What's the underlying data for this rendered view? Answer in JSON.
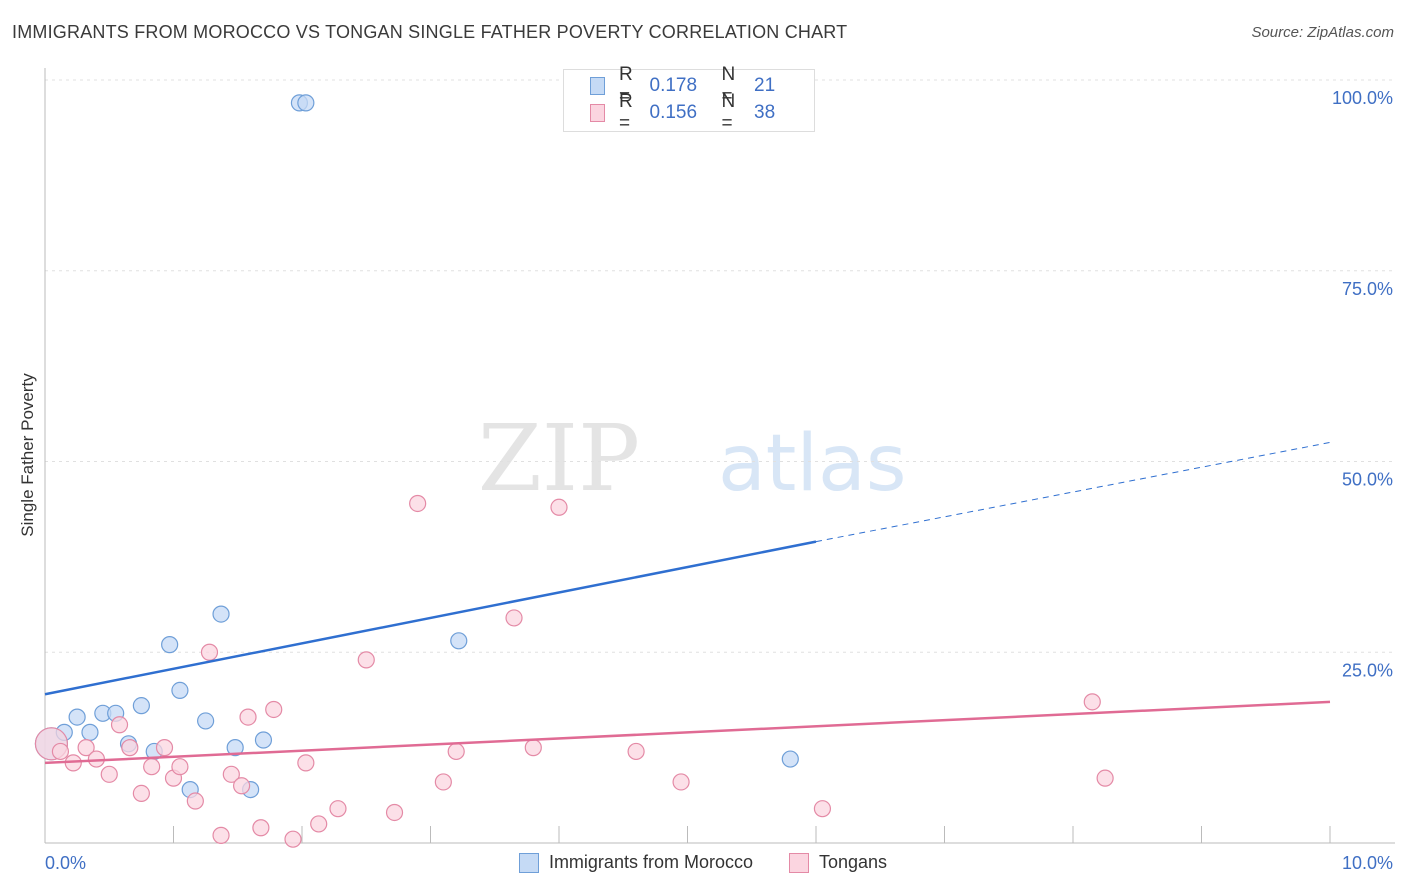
{
  "title": "IMMIGRANTS FROM MOROCCO VS TONGAN SINGLE FATHER POVERTY CORRELATION CHART",
  "source": "Source: ZipAtlas.com",
  "watermark": {
    "part1": "ZIP",
    "part2": "atlas"
  },
  "legend": {
    "rows": [
      {
        "r_label": "R =",
        "r_value": "0.178",
        "n_label": "N =",
        "n_value": "21",
        "color": "#a9c8f0",
        "border": "#6f9fd8"
      },
      {
        "r_label": "R =",
        "r_value": "0.156",
        "n_label": "N =",
        "n_value": "38",
        "color": "#f7c3d2",
        "border": "#e48aa6"
      }
    ]
  },
  "bottom_legend": [
    {
      "label": "Immigrants from Morocco",
      "color": "#c5daf5",
      "border": "#6f9fd8"
    },
    {
      "label": "Tongans",
      "color": "#fbd5e0",
      "border": "#e48aa6"
    }
  ],
  "chart_data": {
    "type": "scatter",
    "title": "IMMIGRANTS FROM MOROCCO VS TONGAN SINGLE FATHER POVERTY CORRELATION CHART",
    "xlabel": "",
    "ylabel": "Single Father Poverty",
    "xlim": [
      0,
      10
    ],
    "ylim": [
      0,
      100
    ],
    "x_tick_labels": [
      "0.0%",
      "10.0%"
    ],
    "y_tick_labels": [
      "25.0%",
      "50.0%",
      "75.0%",
      "100.0%"
    ],
    "y_ticks": [
      25,
      50,
      75,
      100
    ],
    "grid": "horizontal dashed",
    "series": [
      {
        "name": "Immigrants from Morocco",
        "color": "#6f9fd8",
        "fill": "#c5daf5",
        "trend_color": "#2f6fd0",
        "trend": {
          "x0": 0,
          "y0": 19.5,
          "x1": 6.0,
          "y1": 39.5,
          "x_dash_end": 10,
          "y_dash_end": 52.5
        },
        "points": [
          {
            "x": 0.05,
            "y": 13.0,
            "big": true
          },
          {
            "x": 0.15,
            "y": 14.5
          },
          {
            "x": 0.25,
            "y": 16.5
          },
          {
            "x": 0.35,
            "y": 14.5
          },
          {
            "x": 0.45,
            "y": 17.0
          },
          {
            "x": 0.55,
            "y": 17.0
          },
          {
            "x": 0.65,
            "y": 13.0
          },
          {
            "x": 0.75,
            "y": 18.0
          },
          {
            "x": 0.85,
            "y": 12.0
          },
          {
            "x": 0.97,
            "y": 26.0
          },
          {
            "x": 1.05,
            "y": 20.0
          },
          {
            "x": 1.13,
            "y": 7.0
          },
          {
            "x": 1.25,
            "y": 16.0
          },
          {
            "x": 1.37,
            "y": 30.0
          },
          {
            "x": 1.48,
            "y": 12.5
          },
          {
            "x": 1.6,
            "y": 7.0
          },
          {
            "x": 1.7,
            "y": 13.5
          },
          {
            "x": 1.98,
            "y": 97.0
          },
          {
            "x": 2.03,
            "y": 97.0
          },
          {
            "x": 3.22,
            "y": 26.5
          },
          {
            "x": 5.8,
            "y": 11.0
          }
        ]
      },
      {
        "name": "Tongans",
        "color": "#e48aa6",
        "fill": "#fbd5e0",
        "trend_color": "#e06b94",
        "trend": {
          "x0": 0,
          "y0": 10.5,
          "x1": 10,
          "y1": 18.5
        },
        "points": [
          {
            "x": 0.05,
            "y": 13.0,
            "big": true
          },
          {
            "x": 0.12,
            "y": 12.0
          },
          {
            "x": 0.22,
            "y": 10.5
          },
          {
            "x": 0.32,
            "y": 12.5
          },
          {
            "x": 0.4,
            "y": 11.0
          },
          {
            "x": 0.5,
            "y": 9.0
          },
          {
            "x": 0.58,
            "y": 15.5
          },
          {
            "x": 0.66,
            "y": 12.5
          },
          {
            "x": 0.75,
            "y": 6.5
          },
          {
            "x": 0.83,
            "y": 10.0
          },
          {
            "x": 0.93,
            "y": 12.5
          },
          {
            "x": 1.0,
            "y": 8.5
          },
          {
            "x": 1.05,
            "y": 10.0
          },
          {
            "x": 1.17,
            "y": 5.5
          },
          {
            "x": 1.28,
            "y": 25.0
          },
          {
            "x": 1.37,
            "y": 1.0
          },
          {
            "x": 1.45,
            "y": 9.0
          },
          {
            "x": 1.53,
            "y": 7.5
          },
          {
            "x": 1.58,
            "y": 16.5
          },
          {
            "x": 1.68,
            "y": 2.0
          },
          {
            "x": 1.78,
            "y": 17.5
          },
          {
            "x": 1.93,
            "y": 0.5
          },
          {
            "x": 2.03,
            "y": 10.5
          },
          {
            "x": 2.13,
            "y": 2.5
          },
          {
            "x": 2.28,
            "y": 4.5
          },
          {
            "x": 2.5,
            "y": 24.0
          },
          {
            "x": 2.72,
            "y": 4.0
          },
          {
            "x": 2.9,
            "y": 44.5
          },
          {
            "x": 3.1,
            "y": 8.0
          },
          {
            "x": 3.2,
            "y": 12.0
          },
          {
            "x": 3.65,
            "y": 29.5
          },
          {
            "x": 3.8,
            "y": 12.5
          },
          {
            "x": 4.0,
            "y": 44.0
          },
          {
            "x": 4.6,
            "y": 12.0
          },
          {
            "x": 4.95,
            "y": 8.0
          },
          {
            "x": 6.05,
            "y": 4.5
          },
          {
            "x": 8.15,
            "y": 18.5
          },
          {
            "x": 8.25,
            "y": 8.5
          }
        ]
      }
    ]
  }
}
